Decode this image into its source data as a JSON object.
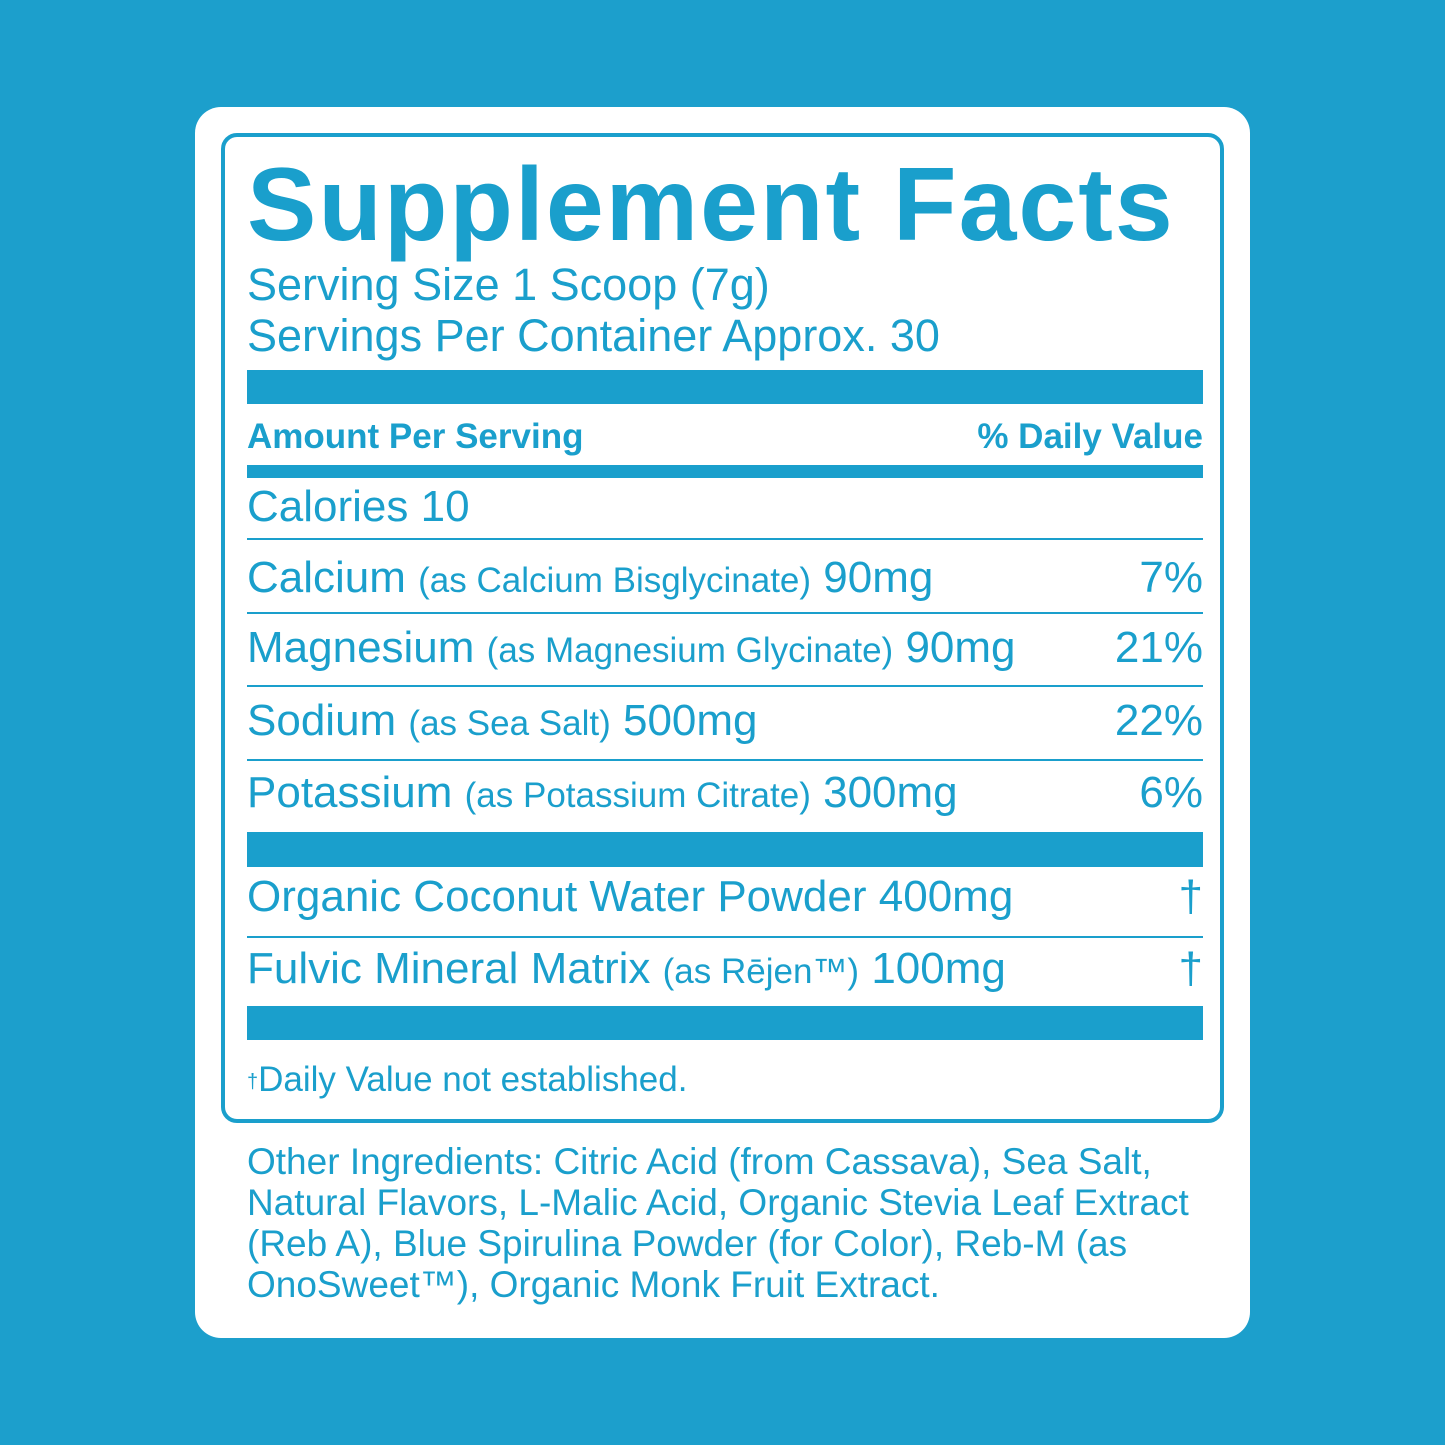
{
  "colors": {
    "brand": "#1a9fcc",
    "background": "#1c9fcc",
    "card": "#ffffff"
  },
  "title": "Supplement Facts",
  "serving_size": "Serving Size 1 Scoop (7g)",
  "servings_per_container": "Servings Per Container Approx. 30",
  "header": {
    "amount": "Amount Per Serving",
    "dv": "% Daily Value"
  },
  "calories": "Calories 10",
  "nutrients": [
    {
      "name": "Calcium",
      "source": "(as Calcium Bisglycinate)",
      "amount": "90mg",
      "dv": "7%"
    },
    {
      "name": "Magnesium",
      "source": "(as Magnesium Glycinate)",
      "amount": "90mg",
      "dv": "21%"
    },
    {
      "name": "Sodium",
      "source": "(as Sea Salt)",
      "amount": "500mg",
      "dv": "22%"
    },
    {
      "name": "Potassium",
      "source": "(as Potassium Citrate)",
      "amount": "300mg",
      "dv": "6%"
    }
  ],
  "other_nutrients": [
    {
      "name": "Organic Coconut Water Powder",
      "source": "",
      "amount": "400mg",
      "dv": "†"
    },
    {
      "name": "Fulvic Mineral Matrix",
      "source": "(as Rējen™)",
      "amount": "100mg",
      "dv": "†"
    }
  ],
  "footnote": {
    "mark": "†",
    "text": "Daily Value not established."
  },
  "other_ingredients": "Other Ingredients: Citric Acid (from Cassava), Sea Salt, Natural Flavors, L-Malic Acid, Organic Stevia Leaf Extract (Reb A), Blue Spirulina Powder (for Color), Reb-M (as OnoSweet™), Organic Monk Fruit Extract."
}
